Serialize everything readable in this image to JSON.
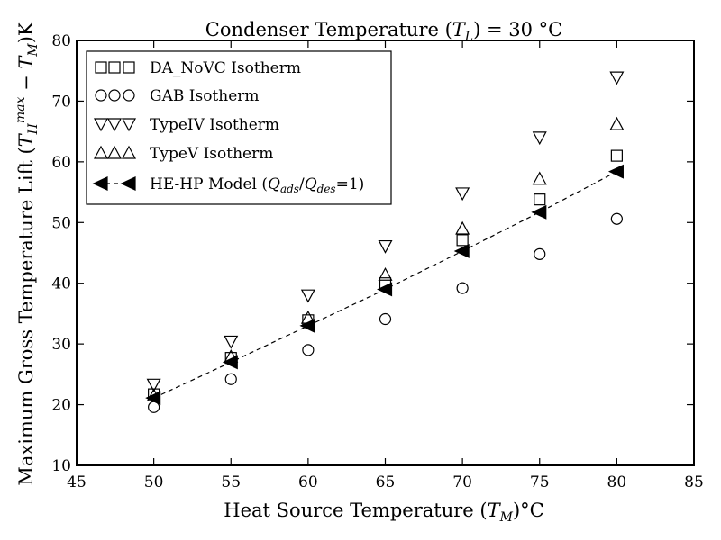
{
  "chart_data": {
    "type": "scatter",
    "title": "Condenser Temperature (T_L) = 30 °C",
    "title_parts": {
      "pre": "Condenser Temperature (",
      "sym": "T",
      "sub": "L",
      "post": ") = 30 °C"
    },
    "xlabel": "Heat Source Temperature (T_M)°C",
    "xlabel_parts": {
      "pre": "Heat Source Temperature (",
      "sym": "T",
      "sub": "M",
      "post": ")°C"
    },
    "ylabel": "Maximum Gross Temperature Lift (T_H^max − T_M)K",
    "ylabel_parts": {
      "pre": "Maximum Gross Temperature Lift (",
      "sym": "T",
      "sub": "H",
      "sup": "max",
      "mid": " − ",
      "sym2": "T",
      "sub2": "M",
      "post": ")K"
    },
    "xlim": [
      45,
      85
    ],
    "ylim": [
      10,
      80
    ],
    "xticks": [
      45,
      50,
      55,
      60,
      65,
      70,
      75,
      80,
      85
    ],
    "yticks": [
      10,
      20,
      30,
      40,
      50,
      60,
      70,
      80
    ],
    "grid": false,
    "legend_position": "top-left",
    "x": [
      50,
      55,
      60,
      65,
      70,
      75,
      80
    ],
    "series": [
      {
        "name": "DA_NoVC Isotherm",
        "marker": "square",
        "filled": false,
        "line": false,
        "values": [
          21.7,
          27.7,
          33.9,
          40.0,
          47.1,
          53.8,
          61.0
        ]
      },
      {
        "name": "GAB Isotherm",
        "marker": "circle",
        "filled": false,
        "line": false,
        "values": [
          19.6,
          24.2,
          29.0,
          34.1,
          39.2,
          44.8,
          50.6
        ]
      },
      {
        "name": "TypeIV Isotherm",
        "marker": "triangle-down",
        "filled": false,
        "line": false,
        "values": [
          23.3,
          30.4,
          38.0,
          46.1,
          54.8,
          64.0,
          73.9
        ]
      },
      {
        "name": "TypeV Isotherm",
        "marker": "triangle-up",
        "filled": false,
        "line": false,
        "values": [
          21.5,
          27.9,
          34.3,
          41.4,
          49.0,
          57.2,
          66.2
        ]
      },
      {
        "name": "HE-HP Model (Q_ads/Q_des=1)",
        "name_parts": {
          "pre": "HE-HP Model (",
          "sym": "Q",
          "sub": "ads",
          "mid": "/",
          "sym2": "Q",
          "sub2": "des",
          "post": "=1)"
        },
        "marker": "triangle-left",
        "filled": true,
        "line": true,
        "line_style": "dashed",
        "values": [
          21.1,
          27.0,
          33.0,
          39.0,
          45.3,
          51.7,
          58.4
        ]
      }
    ],
    "colors": {
      "marker": "#000000",
      "background": "#ffffff"
    }
  }
}
